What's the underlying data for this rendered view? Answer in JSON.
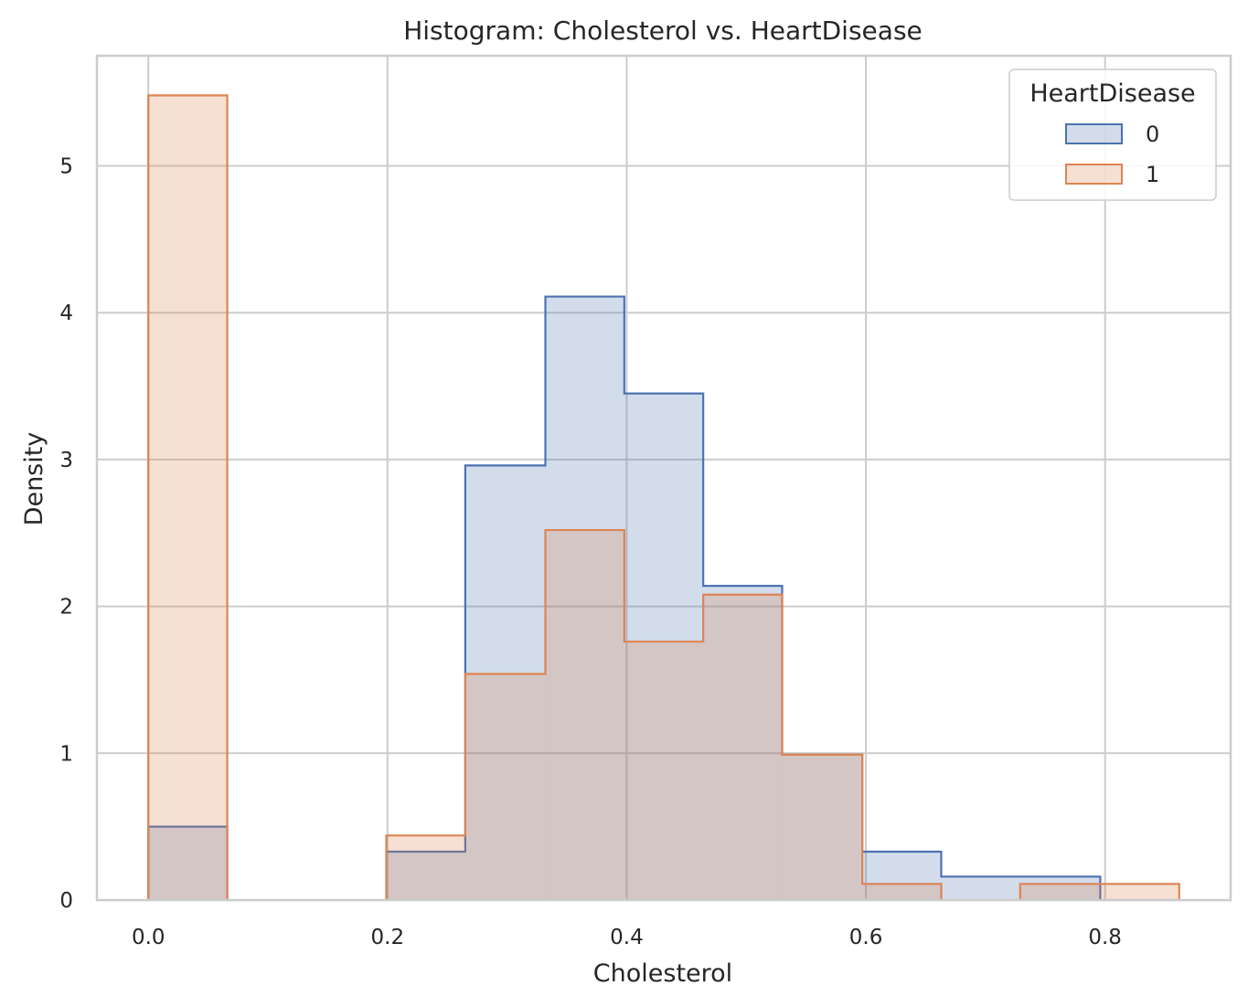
{
  "chart_data": {
    "type": "histogram",
    "title": "Histogram: Cholesterol vs. HeartDisease",
    "xlabel": "Cholesterol",
    "ylabel": "Density",
    "xlim": [
      -0.043,
      0.905
    ],
    "ylim": [
      0,
      5.75
    ],
    "xticks": [
      0.0,
      0.2,
      0.4,
      0.6,
      0.8
    ],
    "yticks": [
      0,
      1,
      2,
      3,
      4,
      5
    ],
    "grid": true,
    "element": "step",
    "fill_opacity": 0.25,
    "legend": {
      "title": "HeartDisease",
      "placement": "top-right",
      "entries": [
        "0",
        "1"
      ]
    },
    "series": [
      {
        "name": "0",
        "color": "#4c72b0",
        "bins": [
          {
            "x0": 0.0,
            "x1": 0.066,
            "y": 0.5
          },
          {
            "x0": 0.066,
            "x1": 0.133,
            "y": 0
          },
          {
            "x0": 0.133,
            "x1": 0.199,
            "y": 0
          },
          {
            "x0": 0.199,
            "x1": 0.265,
            "y": 0.33
          },
          {
            "x0": 0.265,
            "x1": 0.332,
            "y": 2.96
          },
          {
            "x0": 0.332,
            "x1": 0.398,
            "y": 4.11
          },
          {
            "x0": 0.398,
            "x1": 0.464,
            "y": 3.45
          },
          {
            "x0": 0.464,
            "x1": 0.53,
            "y": 2.14
          },
          {
            "x0": 0.53,
            "x1": 0.597,
            "y": 0.99
          },
          {
            "x0": 0.597,
            "x1": 0.663,
            "y": 0.33
          },
          {
            "x0": 0.663,
            "x1": 0.729,
            "y": 0.16
          },
          {
            "x0": 0.729,
            "x1": 0.796,
            "y": 0.16
          }
        ]
      },
      {
        "name": "1",
        "color": "#dd8452",
        "bins": [
          {
            "x0": 0.0,
            "x1": 0.066,
            "y": 5.48
          },
          {
            "x0": 0.066,
            "x1": 0.133,
            "y": 0
          },
          {
            "x0": 0.133,
            "x1": 0.199,
            "y": 0
          },
          {
            "x0": 0.199,
            "x1": 0.265,
            "y": 0.44
          },
          {
            "x0": 0.265,
            "x1": 0.332,
            "y": 1.54
          },
          {
            "x0": 0.332,
            "x1": 0.398,
            "y": 2.52
          },
          {
            "x0": 0.398,
            "x1": 0.464,
            "y": 1.76
          },
          {
            "x0": 0.464,
            "x1": 0.53,
            "y": 2.08
          },
          {
            "x0": 0.53,
            "x1": 0.597,
            "y": 0.99
          },
          {
            "x0": 0.597,
            "x1": 0.663,
            "y": 0.11
          },
          {
            "x0": 0.663,
            "x1": 0.729,
            "y": 0
          },
          {
            "x0": 0.729,
            "x1": 0.796,
            "y": 0.11
          },
          {
            "x0": 0.796,
            "x1": 0.862,
            "y": 0.11
          }
        ]
      }
    ]
  }
}
